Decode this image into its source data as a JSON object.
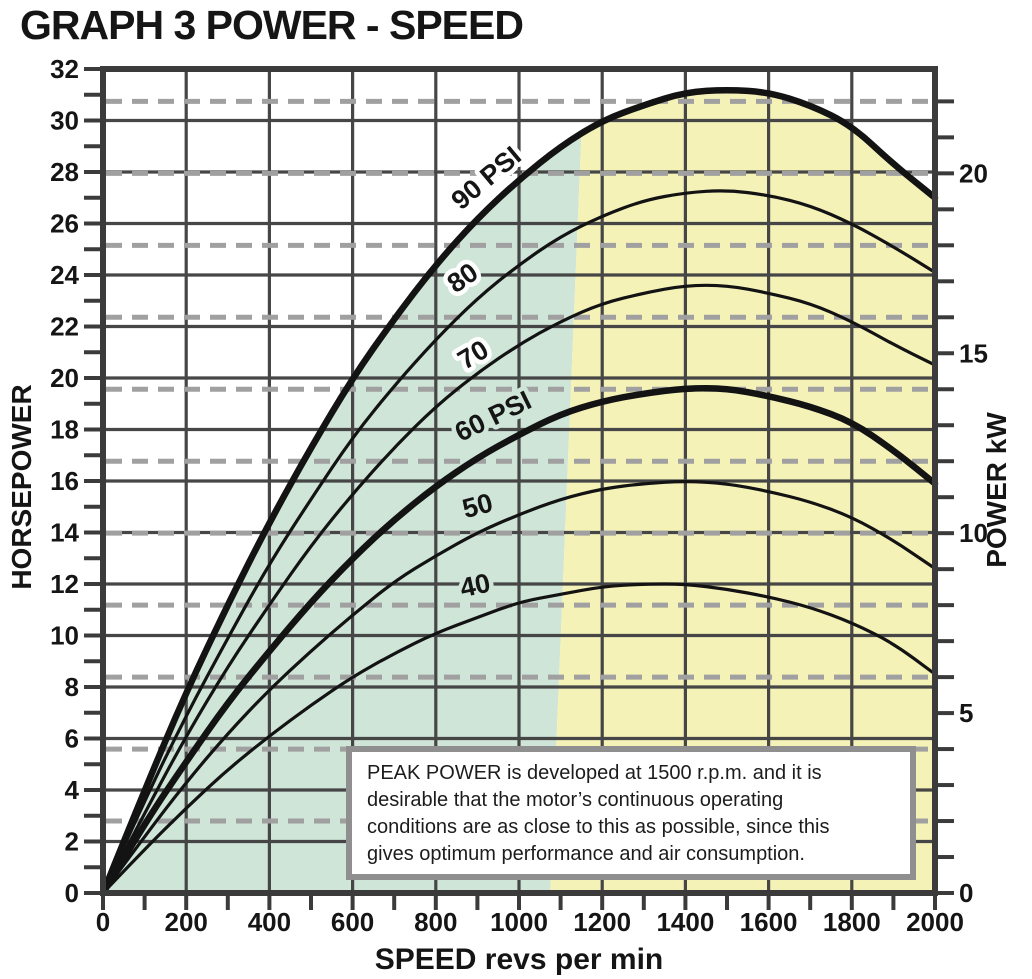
{
  "title": "GRAPH 3 POWER - SPEED",
  "note_box": {
    "lines": [
      "PEAK POWER is developed at 1500 r.p.m. and it is",
      "desirable that the motor’s continuous operating",
      "conditions are as close to this as possible, since this",
      "gives optimum performance and air consumption."
    ]
  },
  "colors": {
    "background": "#ffffff",
    "green_region": "#cee5d8",
    "yellow_region": "#f5f2b8",
    "grid": "#464646",
    "axis": "#3b3b3b",
    "dashed_kw_grid": "#a0a0a0",
    "curve": "#131313",
    "text": "#151515",
    "note_border": "#8f8f8f"
  },
  "chart_data": {
    "type": "line",
    "title": "GRAPH 3 POWER - SPEED",
    "xlabel": "SPEED revs per min",
    "ylabel_left": "HORSEPOWER",
    "ylabel_right": "POWER kW",
    "xlim": [
      0,
      2000
    ],
    "x_major_tick_step": 200,
    "x_minor_tick_step": 100,
    "x_tick_labels": [
      0,
      200,
      400,
      600,
      800,
      1000,
      1200,
      1400,
      1600,
      1800,
      2000
    ],
    "ylim_left_hp": [
      0,
      32
    ],
    "y_left_tick_labels": [
      0,
      2,
      4,
      6,
      8,
      10,
      12,
      14,
      16,
      18,
      20,
      22,
      24,
      26,
      28,
      30,
      32
    ],
    "y_left_minor_tick_step": 1,
    "ylim_right_kw": [
      0,
      22.9
    ],
    "y_right_tick_labels": [
      0,
      5,
      10,
      15,
      20
    ],
    "y_right_minor_tick_step": 1,
    "solid_hgrid_step_hp": 2,
    "dashed_hgrid_step_kw": 2,
    "grid": true,
    "x_sample_step_rpm": 100,
    "annotation": "PEAK POWER is developed at 1500 r.p.m. and it is desirable that the motor’s continuous operating conditions are as close to this as possible, since this gives optimum performance and air consumption.",
    "series": [
      {
        "name": "90 PSI",
        "label": "90 PSI",
        "thick": true,
        "peak_hp": 31.2,
        "peak_rpm": 1500,
        "hp": [
          0,
          4.0,
          7.8,
          11.2,
          14.4,
          17.3,
          20.0,
          22.3,
          24.4,
          26.2,
          27.7,
          29.0,
          30.0,
          30.6,
          31.1,
          31.2,
          31.1,
          30.6,
          29.8,
          28.3,
          27.0
        ],
        "label_rpm": 935,
        "label_hp": 27.5,
        "label_rot": -40,
        "halo": "#ffffff"
      },
      {
        "name": "80 PSI",
        "label": "80",
        "thick": false,
        "peak_hp": 27.3,
        "peak_rpm": 1480,
        "hp": [
          0,
          3.6,
          6.9,
          9.9,
          12.8,
          15.3,
          17.7,
          19.7,
          21.5,
          23.1,
          24.4,
          25.5,
          26.3,
          26.9,
          27.2,
          27.3,
          27.1,
          26.7,
          26.0,
          25.1,
          24.1
        ],
        "label_rpm": 877,
        "label_hp": 23.6,
        "label_rot": -35,
        "halo": "#ffffff"
      },
      {
        "name": "70 PSI",
        "label": "70",
        "thick": false,
        "peak_hp": 23.6,
        "peak_rpm": 1450,
        "hp": [
          0,
          3.1,
          6.1,
          8.8,
          11.2,
          13.5,
          15.5,
          17.3,
          18.9,
          20.2,
          21.3,
          22.2,
          22.9,
          23.3,
          23.6,
          23.6,
          23.3,
          22.9,
          22.2,
          21.3,
          20.5
        ],
        "label_rpm": 901,
        "label_hp": 20.6,
        "label_rot": -31,
        "halo": "#ffffff"
      },
      {
        "name": "60 PSI",
        "label": "60 PSI",
        "thick": true,
        "peak_hp": 19.6,
        "peak_rpm": 1430,
        "hp": [
          0,
          2.7,
          5.1,
          7.4,
          9.4,
          11.3,
          13.0,
          14.5,
          15.8,
          16.9,
          17.8,
          18.6,
          19.1,
          19.4,
          19.6,
          19.6,
          19.3,
          18.9,
          18.3,
          17.2,
          15.9
        ],
        "label_rpm": 947,
        "label_hp": 18.2,
        "label_rot": -26,
        "halo": "#cee5d8"
      },
      {
        "name": "50 PSI",
        "label": "50",
        "thick": false,
        "peak_hp": 16.0,
        "peak_rpm": 1390,
        "hp": [
          0,
          2.2,
          4.3,
          6.2,
          7.9,
          9.4,
          10.8,
          12.1,
          13.1,
          14.0,
          14.7,
          15.3,
          15.7,
          15.9,
          16.0,
          15.9,
          15.6,
          15.2,
          14.6,
          13.7,
          12.6
        ],
        "label_rpm": 906,
        "label_hp": 14.7,
        "label_rot": -15,
        "halo": "#cee5d8"
      },
      {
        "name": "40 PSI",
        "label": "40",
        "thick": false,
        "peak_hp": 12.0,
        "peak_rpm": 1330,
        "hp": [
          0,
          1.7,
          3.3,
          4.8,
          6.1,
          7.3,
          8.4,
          9.3,
          10.1,
          10.7,
          11.3,
          11.6,
          11.9,
          12.0,
          12.0,
          11.8,
          11.5,
          11.1,
          10.5,
          9.7,
          8.5
        ],
        "label_rpm": 899,
        "label_hp": 11.6,
        "label_rot": -12,
        "halo": "#cee5d8"
      }
    ],
    "regions": [
      {
        "name": "green-continuous-operating-region",
        "fill": "#cee5d8",
        "under_series": "90 PSI",
        "from_rpm": 0,
        "curve_to_rpm": 1150,
        "bottom_to_rpm": 1075
      },
      {
        "name": "yellow-region",
        "fill": "#f5f2b8",
        "under_series": "90 PSI",
        "curve_from_rpm": 1150,
        "to_rpm": 2000,
        "bottom_from_rpm": 1075
      }
    ]
  }
}
